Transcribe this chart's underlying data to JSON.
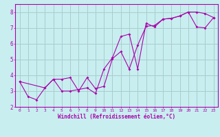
{
  "title": "",
  "xlabel": "Windchill (Refroidissement éolien,°C)",
  "ylabel": "",
  "bg_color": "#c8eef0",
  "line_color": "#aa00aa",
  "grid_color": "#aacccc",
  "xlim": [
    -0.5,
    23.5
  ],
  "ylim": [
    2.0,
    8.5
  ],
  "xticks": [
    0,
    1,
    2,
    3,
    4,
    5,
    6,
    7,
    8,
    9,
    10,
    11,
    12,
    13,
    14,
    15,
    16,
    17,
    18,
    19,
    20,
    21,
    22,
    23
  ],
  "yticks": [
    2,
    3,
    4,
    5,
    6,
    7,
    8
  ],
  "line1_x": [
    0,
    1,
    2,
    3,
    4,
    5,
    6,
    7,
    8,
    9,
    10,
    11,
    12,
    13,
    14,
    15,
    16,
    17,
    18,
    19,
    20,
    21,
    22,
    23
  ],
  "line1_y": [
    3.6,
    2.65,
    2.45,
    3.2,
    3.75,
    3.0,
    3.0,
    3.1,
    3.2,
    2.85,
    4.4,
    5.1,
    6.45,
    6.6,
    4.4,
    7.3,
    7.05,
    7.55,
    7.6,
    7.75,
    8.0,
    8.0,
    7.9,
    7.65
  ],
  "line2_x": [
    0,
    3,
    4,
    5,
    6,
    7,
    8,
    9,
    10,
    11,
    12,
    13,
    14,
    15,
    16,
    17,
    18,
    19,
    20,
    21,
    22,
    23
  ],
  "line2_y": [
    3.6,
    3.2,
    3.75,
    3.75,
    3.85,
    3.0,
    3.85,
    3.15,
    3.3,
    5.05,
    5.5,
    4.4,
    5.9,
    7.1,
    7.15,
    7.55,
    7.6,
    7.75,
    8.0,
    7.05,
    7.0,
    7.65
  ]
}
